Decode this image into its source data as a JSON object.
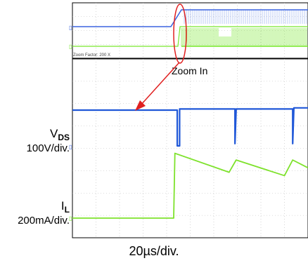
{
  "chart_data": {
    "type": "line",
    "title": "",
    "zoom_factor_text": "Zoom Factor: 200 X",
    "annotation": "Zoom In",
    "xlabel": "20µs/div.",
    "grid": true,
    "grid_divisions": {
      "x": 10,
      "y": 8
    },
    "overview_traces": [
      {
        "name": "VDS",
        "color": "#3b64e0",
        "description_points": [
          [
            0,
            0
          ],
          [
            4.5,
            0
          ],
          [
            5.2,
            1
          ],
          [
            10,
            1
          ]
        ]
      },
      {
        "name": "IL",
        "color": "#77e82a",
        "description_points": [
          [
            0,
            0
          ],
          [
            5.0,
            0
          ],
          [
            5.2,
            1
          ],
          [
            10,
            1
          ]
        ]
      }
    ],
    "series": [
      {
        "name": "VDS",
        "scale": "100V/div.",
        "color": "#1f57d8",
        "x": [
          0,
          4.6,
          4.65,
          4.75,
          4.8,
          4.9,
          7.6,
          7.62,
          7.7,
          10.3
        ],
        "y": [
          0.6,
          1.85,
          -1.75,
          -1.75,
          2.0,
          1.95,
          2.0,
          -0.45,
          2.0,
          2.15
        ]
      },
      {
        "name": "IL",
        "scale": "200mA/div.",
        "color": "#7ee22c",
        "x": [
          0,
          4.6,
          4.75,
          4.8,
          7.5,
          7.55,
          7.65,
          10.2,
          10.3
        ],
        "y": [
          0.35,
          0.3,
          0.3,
          2.8,
          2.1,
          2.05,
          2.7,
          2.1,
          2.75
        ]
      }
    ],
    "channel_labels": [
      {
        "name": "V",
        "sub": "DS",
        "scale": "100V/div."
      },
      {
        "name": "I",
        "sub": "L",
        "scale": "200mA/div."
      }
    ]
  },
  "colors": {
    "blue": "#1f57d8",
    "green": "#7ee22c",
    "arrow": "#e02020",
    "ellipse": "#e02020"
  }
}
